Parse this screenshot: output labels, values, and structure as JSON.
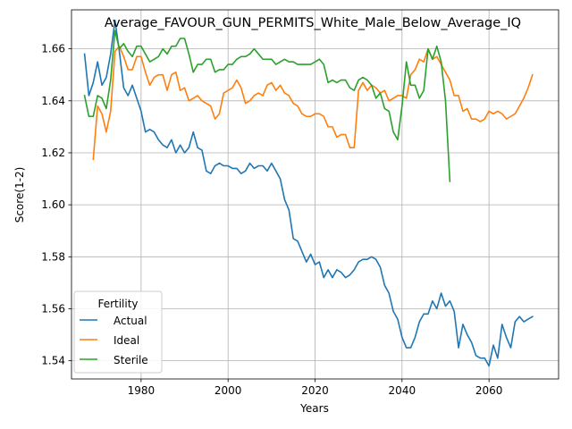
{
  "chart_data": {
    "type": "line",
    "title": "Average_FAVOUR_GUN_PERMITS_White_Male_Below_Average_IQ",
    "xlabel": "Years",
    "ylabel": "Score(1-2)",
    "xlim": [
      1964,
      2076
    ],
    "ylim": [
      1.533,
      1.675
    ],
    "xticks": [
      1980,
      2000,
      2020,
      2040,
      2060
    ],
    "xtick_labels": [
      "1980",
      "2000",
      "2020",
      "2040",
      "2060"
    ],
    "yticks": [
      1.54,
      1.56,
      1.58,
      1.6,
      1.62,
      1.64,
      1.66
    ],
    "ytick_labels": [
      "1.54",
      "1.56",
      "1.58",
      "1.60",
      "1.62",
      "1.64",
      "1.66"
    ],
    "grid": true,
    "legend": {
      "title": "Fertility",
      "location": "lower-left"
    },
    "series": [
      {
        "name": "Actual",
        "color": "#1f77b4",
        "x": [
          1967,
          1968,
          1969,
          1970,
          1971,
          1972,
          1973,
          1974,
          1975,
          1976,
          1977,
          1978,
          1979,
          1980,
          1981,
          1982,
          1983,
          1984,
          1985,
          1986,
          1987,
          1988,
          1989,
          1990,
          1991,
          1992,
          1993,
          1994,
          1995,
          1996,
          1997,
          1998,
          1999,
          2000,
          2001,
          2002,
          2003,
          2004,
          2005,
          2006,
          2007,
          2008,
          2009,
          2010,
          2011,
          2012,
          2013,
          2014,
          2015,
          2016,
          2017,
          2018,
          2019,
          2020,
          2021,
          2022,
          2023,
          2024,
          2025,
          2026,
          2027,
          2028,
          2029,
          2030,
          2031,
          2032,
          2033,
          2034,
          2035,
          2036,
          2037,
          2038,
          2039,
          2040,
          2041,
          2042,
          2043,
          2044,
          2045,
          2046,
          2047,
          2048,
          2049,
          2050,
          2051,
          2052,
          2053,
          2054,
          2055,
          2056,
          2057,
          2058,
          2059,
          2060,
          2061,
          2062,
          2063,
          2064,
          2065,
          2066,
          2067,
          2068,
          2069,
          2070
        ],
        "y": [
          1.658,
          1.642,
          1.647,
          1.655,
          1.646,
          1.649,
          1.658,
          1.671,
          1.659,
          1.645,
          1.642,
          1.646,
          1.641,
          1.636,
          1.628,
          1.629,
          1.628,
          1.625,
          1.623,
          1.622,
          1.625,
          1.62,
          1.623,
          1.62,
          1.622,
          1.628,
          1.622,
          1.621,
          1.613,
          1.612,
          1.615,
          1.616,
          1.615,
          1.615,
          1.614,
          1.614,
          1.612,
          1.613,
          1.616,
          1.614,
          1.615,
          1.615,
          1.613,
          1.616,
          1.613,
          1.61,
          1.602,
          1.598,
          1.587,
          1.586,
          1.582,
          1.578,
          1.581,
          1.577,
          1.578,
          1.572,
          1.575,
          1.572,
          1.575,
          1.574,
          1.572,
          1.573,
          1.575,
          1.578,
          1.579,
          1.579,
          1.58,
          1.579,
          1.576,
          1.569,
          1.566,
          1.559,
          1.556,
          1.549,
          1.545,
          1.545,
          1.549,
          1.555,
          1.558,
          1.558,
          1.563,
          1.56,
          1.566,
          1.561,
          1.563,
          1.559,
          1.545,
          1.554,
          1.55,
          1.547,
          1.542,
          1.541,
          1.541,
          1.538,
          1.546,
          1.541,
          1.554,
          1.549,
          1.545,
          1.555,
          1.557,
          1.555,
          1.556,
          1.557
        ]
      },
      {
        "name": "Ideal",
        "color": "#ff7f0e",
        "x": [
          1969,
          1970,
          1971,
          1972,
          1973,
          1974,
          1975,
          1976,
          1977,
          1978,
          1979,
          1980,
          1981,
          1982,
          1983,
          1984,
          1985,
          1986,
          1987,
          1988,
          1989,
          1990,
          1991,
          1992,
          1993,
          1994,
          1995,
          1996,
          1997,
          1998,
          1999,
          2000,
          2001,
          2002,
          2003,
          2004,
          2005,
          2006,
          2007,
          2008,
          2009,
          2010,
          2011,
          2012,
          2013,
          2014,
          2015,
          2016,
          2017,
          2018,
          2019,
          2020,
          2021,
          2022,
          2023,
          2024,
          2025,
          2026,
          2027,
          2028,
          2029,
          2030,
          2031,
          2032,
          2033,
          2034,
          2035,
          2036,
          2037,
          2038,
          2039,
          2040,
          2041,
          2042,
          2043,
          2044,
          2045,
          2046,
          2047,
          2048,
          2049,
          2050,
          2051,
          2052,
          2053,
          2054,
          2055,
          2056,
          2057,
          2058,
          2059,
          2060,
          2061,
          2062,
          2063,
          2064,
          2065,
          2066,
          2067,
          2068,
          2069,
          2070
        ],
        "y": [
          1.6175,
          1.638,
          1.635,
          1.628,
          1.636,
          1.659,
          1.661,
          1.657,
          1.652,
          1.652,
          1.657,
          1.657,
          1.651,
          1.646,
          1.649,
          1.65,
          1.65,
          1.644,
          1.65,
          1.651,
          1.644,
          1.645,
          1.64,
          1.641,
          1.642,
          1.64,
          1.639,
          1.638,
          1.633,
          1.635,
          1.643,
          1.644,
          1.645,
          1.648,
          1.645,
          1.639,
          1.64,
          1.642,
          1.643,
          1.642,
          1.646,
          1.647,
          1.644,
          1.646,
          1.643,
          1.642,
          1.639,
          1.638,
          1.635,
          1.634,
          1.634,
          1.635,
          1.635,
          1.634,
          1.63,
          1.63,
          1.626,
          1.627,
          1.627,
          1.622,
          1.622,
          1.644,
          1.647,
          1.644,
          1.646,
          1.645,
          1.643,
          1.644,
          1.64,
          1.641,
          1.642,
          1.642,
          1.641,
          1.65,
          1.652,
          1.656,
          1.655,
          1.66,
          1.656,
          1.657,
          1.654,
          1.651,
          1.648,
          1.642,
          1.642,
          1.636,
          1.637,
          1.633,
          1.633,
          1.632,
          1.633,
          1.636,
          1.635,
          1.636,
          1.635,
          1.633,
          1.634,
          1.635,
          1.638,
          1.641,
          1.645,
          1.65
        ]
      },
      {
        "name": "Sterile",
        "color": "#2ca02c",
        "x": [
          1967,
          1968,
          1969,
          1970,
          1971,
          1972,
          1973,
          1974,
          1975,
          1976,
          1977,
          1978,
          1979,
          1980,
          1981,
          1982,
          1983,
          1984,
          1985,
          1986,
          1987,
          1988,
          1989,
          1990,
          1991,
          1992,
          1993,
          1994,
          1995,
          1996,
          1997,
          1998,
          1999,
          2000,
          2001,
          2002,
          2003,
          2004,
          2005,
          2006,
          2007,
          2008,
          2009,
          2010,
          2011,
          2012,
          2013,
          2014,
          2015,
          2016,
          2017,
          2018,
          2019,
          2020,
          2021,
          2022,
          2023,
          2024,
          2025,
          2026,
          2027,
          2028,
          2029,
          2030,
          2031,
          2032,
          2033,
          2034,
          2035,
          2036,
          2037,
          2038,
          2039,
          2040,
          2041,
          2042,
          2043,
          2044,
          2045,
          2046,
          2047,
          2048,
          2049,
          2050,
          2051
        ],
        "y": [
          1.642,
          1.634,
          1.634,
          1.642,
          1.641,
          1.637,
          1.648,
          1.667,
          1.66,
          1.662,
          1.659,
          1.657,
          1.661,
          1.661,
          1.658,
          1.655,
          1.656,
          1.657,
          1.66,
          1.658,
          1.661,
          1.661,
          1.664,
          1.664,
          1.658,
          1.651,
          1.654,
          1.654,
          1.656,
          1.656,
          1.651,
          1.652,
          1.652,
          1.654,
          1.654,
          1.656,
          1.657,
          1.657,
          1.658,
          1.66,
          1.658,
          1.656,
          1.656,
          1.656,
          1.654,
          1.655,
          1.656,
          1.655,
          1.655,
          1.654,
          1.654,
          1.654,
          1.654,
          1.655,
          1.656,
          1.654,
          1.647,
          1.648,
          1.647,
          1.648,
          1.648,
          1.645,
          1.644,
          1.648,
          1.649,
          1.648,
          1.646,
          1.641,
          1.643,
          1.637,
          1.636,
          1.628,
          1.625,
          1.638,
          1.655,
          1.646,
          1.646,
          1.641,
          1.644,
          1.66,
          1.656,
          1.661,
          1.655,
          1.64,
          1.609
        ]
      }
    ]
  }
}
